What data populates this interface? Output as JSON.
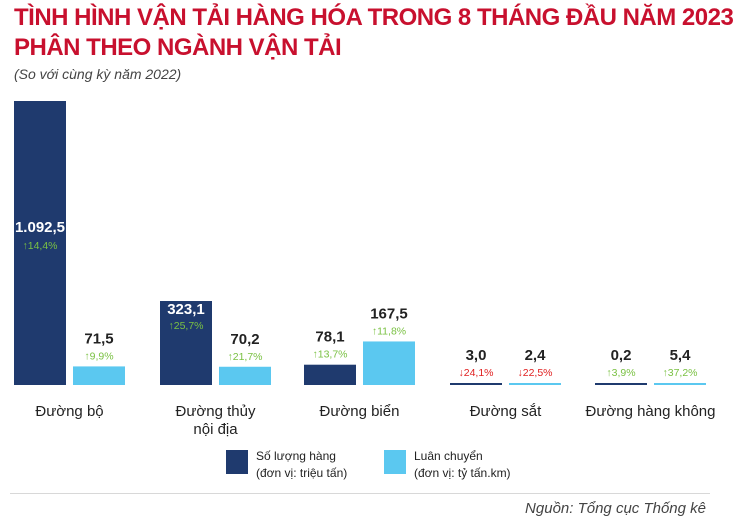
{
  "header": {
    "title_line1": "TÌNH HÌNH VẬN TẢI HÀNG HÓA TRONG 8 THÁNG ĐẦU NĂM 2023",
    "title_line2": "PHÂN THEO NGÀNH VẬN TẢI",
    "subtitle": "(So với cùng kỳ năm 2022)"
  },
  "legend": {
    "volume_label": "Số lượng hàng",
    "volume_unit": "(đơn vị: triệu tấn)",
    "rotation_label": "Luân chuyển",
    "rotation_unit": "(đơn vị: tỷ tấn.km)"
  },
  "source": "Nguồn: Tổng cục Thống kê",
  "colors": {
    "title": "#c8102e",
    "volume": "#1f3a6e",
    "rotation": "#5bc8f0",
    "increase": "#7ac143",
    "decrease": "#e02020"
  },
  "chart_data": {
    "type": "bar",
    "categories": [
      [
        "Đường bộ"
      ],
      [
        "Đường thủy",
        "nội địa"
      ],
      [
        "Đường biển"
      ],
      [
        "Đường sắt"
      ],
      [
        "Đường hàng không"
      ]
    ],
    "series": [
      {
        "name": "Số lượng hàng",
        "values": [
          1092.5,
          323.1,
          78.1,
          3.0,
          0.2
        ],
        "labels": [
          "1.092,5",
          "323,1",
          "78,1",
          "3,0",
          "0,2"
        ],
        "changes": [
          "14,4%",
          "25,7%",
          "13,7%",
          "24,1%",
          "3,9%"
        ],
        "directions": [
          "up",
          "up",
          "up",
          "down",
          "up"
        ]
      },
      {
        "name": "Luân chuyển",
        "values": [
          71.5,
          70.2,
          167.5,
          2.4,
          5.4
        ],
        "labels": [
          "71,5",
          "70,2",
          "167,5",
          "2,4",
          "5,4"
        ],
        "changes": [
          "9,9%",
          "21,7%",
          "11,8%",
          "22,5%",
          "37,2%"
        ],
        "directions": [
          "up",
          "up",
          "up",
          "down",
          "up"
        ]
      }
    ]
  }
}
